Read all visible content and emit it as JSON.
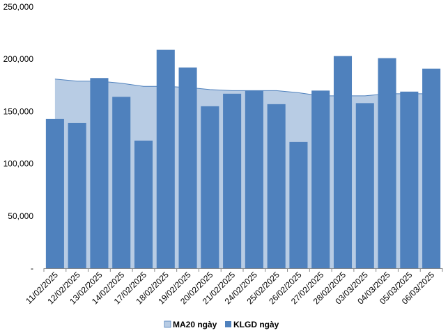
{
  "chart_data": {
    "type": "bar",
    "categories": [
      "11/02/2025",
      "12/02/2025",
      "13/02/2025",
      "14/02/2025",
      "17/02/2025",
      "18/02/2025",
      "19/02/2025",
      "20/02/2025",
      "21/02/2025",
      "24/02/2025",
      "25/02/2025",
      "26/02/2025",
      "27/02/2025",
      "28/02/2025",
      "03/03/2025",
      "04/03/2025",
      "05/03/2025",
      "06/03/2025"
    ],
    "series": [
      {
        "name": "MA20 ngày",
        "kind": "area",
        "color": "#b8cce4",
        "line_color": "#4f81bd",
        "values": [
          181000,
          179000,
          179000,
          177000,
          174000,
          174000,
          173000,
          171000,
          170000,
          170000,
          170000,
          168000,
          165000,
          165000,
          165000,
          167000,
          167000,
          167000
        ]
      },
      {
        "name": "KLGD ngày",
        "kind": "bar",
        "color": "#4f81bd",
        "values": [
          143000,
          139000,
          182000,
          164000,
          122000,
          209000,
          192000,
          155000,
          167000,
          170000,
          157000,
          121000,
          170000,
          203000,
          158000,
          201000,
          169000,
          191000
        ]
      }
    ],
    "y_ticks": [
      "-",
      "50,000",
      "100,000",
      "150,000",
      "200,000",
      "250,000"
    ],
    "ylim": [
      0,
      250000
    ],
    "grid": false,
    "legend_position": "bottom"
  }
}
